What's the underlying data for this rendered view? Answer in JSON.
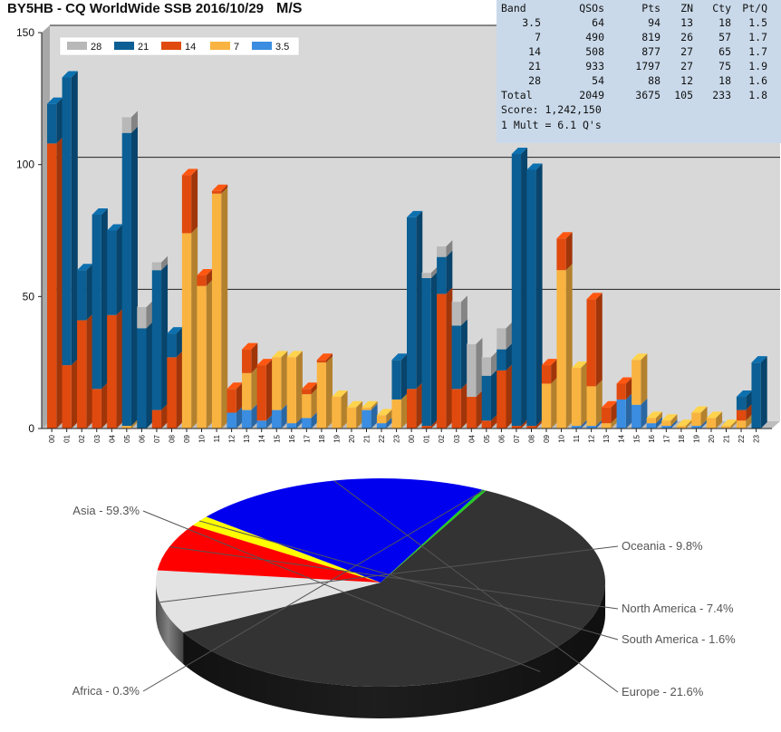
{
  "header": {
    "title": "BY5HB - CQ WorldWide SSB 2016/10/29",
    "category": "M/S"
  },
  "colors": {
    "28": "#b8b8b8",
    "21": "#0b5f94",
    "14": "#e04a0e",
    "7": "#f9b340",
    "3.5": "#3a8de0"
  },
  "summary": {
    "headers": [
      "Band",
      "QSOs",
      "Pts",
      "ZN",
      "Cty",
      "Pt/Q"
    ],
    "rows": [
      [
        "3.5",
        "64",
        "94",
        "13",
        "18",
        "1.5"
      ],
      [
        "7",
        "490",
        "819",
        "26",
        "57",
        "1.7"
      ],
      [
        "14",
        "508",
        "877",
        "27",
        "65",
        "1.7"
      ],
      [
        "21",
        "933",
        "1797",
        "27",
        "75",
        "1.9"
      ],
      [
        "28",
        "54",
        "88",
        "12",
        "18",
        "1.6"
      ],
      [
        "Total",
        "2049",
        "3675",
        "105",
        "233",
        "1.8"
      ]
    ],
    "score": "Score: 1,242,150",
    "mult": "1 Mult = 6.1 Q's"
  },
  "chart_data": [
    {
      "type": "bar",
      "stacked": true,
      "ylim": [
        0,
        150
      ],
      "yticks": [
        0,
        50,
        100,
        150
      ],
      "grid": true,
      "legend_position": "top-left",
      "categories": [
        "00",
        "01",
        "02",
        "03",
        "04",
        "05",
        "06",
        "07",
        "08",
        "09",
        "10",
        "11",
        "12",
        "13",
        "14",
        "15",
        "16",
        "17",
        "18",
        "19",
        "20",
        "21",
        "22",
        "23",
        "00",
        "01",
        "02",
        "03",
        "04",
        "05",
        "06",
        "07",
        "08",
        "09",
        "10",
        "11",
        "12",
        "13",
        "14",
        "15",
        "16",
        "17",
        "18",
        "19",
        "20",
        "21",
        "22",
        "23"
      ],
      "series": [
        {
          "name": "3.5",
          "values": [
            0,
            0,
            0,
            0,
            0,
            0,
            0,
            0,
            0,
            0,
            0,
            0,
            6,
            7,
            3,
            7,
            2,
            4,
            0,
            0,
            0,
            7,
            2,
            0,
            0,
            0,
            0,
            0,
            0,
            0,
            0,
            0,
            0,
            0,
            0,
            1,
            1,
            0,
            11,
            9,
            2,
            1,
            0,
            1,
            0,
            0,
            0,
            0
          ]
        },
        {
          "name": "7",
          "values": [
            0,
            0,
            0,
            0,
            0,
            1,
            0,
            0,
            0,
            74,
            54,
            89,
            0,
            14,
            0,
            20,
            25,
            9,
            25,
            12,
            8,
            1,
            3,
            11,
            0,
            0,
            0,
            0,
            0,
            0,
            0,
            0,
            0,
            17,
            60,
            22,
            15,
            2,
            0,
            17,
            2,
            2,
            1,
            5,
            4,
            1,
            3,
            0
          ]
        },
        {
          "name": "14",
          "values": [
            108,
            24,
            41,
            15,
            43,
            0,
            0,
            7,
            27,
            22,
            4,
            1,
            9,
            9,
            21,
            0,
            0,
            2,
            1,
            0,
            0,
            0,
            0,
            0,
            15,
            1,
            51,
            15,
            12,
            3,
            22,
            1,
            1,
            7,
            12,
            0,
            33,
            6,
            6,
            0,
            0,
            0,
            0,
            0,
            0,
            0,
            4,
            0
          ]
        },
        {
          "name": "21",
          "values": [
            15,
            109,
            19,
            66,
            32,
            111,
            38,
            53,
            9,
            0,
            0,
            0,
            0,
            0,
            0,
            0,
            0,
            0,
            0,
            0,
            0,
            0,
            0,
            15,
            65,
            56,
            14,
            24,
            0,
            17,
            8,
            103,
            97,
            0,
            0,
            0,
            0,
            0,
            0,
            0,
            0,
            0,
            0,
            0,
            0,
            0,
            5,
            25
          ]
        },
        {
          "name": "28",
          "values": [
            0,
            0,
            0,
            0,
            0,
            6,
            8,
            3,
            0,
            0,
            0,
            0,
            0,
            0,
            0,
            0,
            0,
            0,
            0,
            0,
            0,
            0,
            0,
            0,
            0,
            2,
            4,
            9,
            20,
            7,
            8,
            0,
            0,
            0,
            0,
            0,
            0,
            0,
            0,
            0,
            0,
            0,
            0,
            0,
            0,
            0,
            0,
            0
          ]
        }
      ]
    },
    {
      "type": "pie",
      "slices": [
        {
          "label": "Asia - 59.3%",
          "value": 59.3,
          "color": "#333333"
        },
        {
          "label": "Oceania - 9.8%",
          "value": 9.8,
          "color": "#e3e3e3"
        },
        {
          "label": "North America - 7.4%",
          "value": 7.4,
          "color": "#ff0000"
        },
        {
          "label": "South America - 1.6%",
          "value": 1.6,
          "color": "#ffff00"
        },
        {
          "label": "Europe - 21.6%",
          "value": 21.6,
          "color": "#0000ee"
        },
        {
          "label": "Africa - 0.3%",
          "value": 0.3,
          "color": "#22cc22"
        }
      ]
    }
  ]
}
